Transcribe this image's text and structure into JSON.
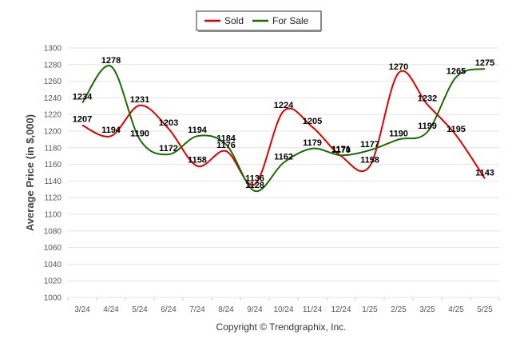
{
  "chart_data": {
    "type": "line",
    "categories": [
      "3/24",
      "4/24",
      "5/24",
      "6/24",
      "7/24",
      "8/24",
      "9/24",
      "10/24",
      "11/24",
      "12/24",
      "1/25",
      "2/25",
      "3/25",
      "4/25",
      "5/25"
    ],
    "series": [
      {
        "name": "Sold",
        "color": "#e00000",
        "values": [
          1207,
          1194,
          1231,
          1203,
          1158,
          1176,
          1136,
          1224,
          1205,
          1170,
          1158,
          1270,
          1232,
          1195,
          1143
        ]
      },
      {
        "name": "For Sale",
        "color": "#1a6b00",
        "values": [
          1234,
          1278,
          1190,
          1172,
          1194,
          1184,
          1128,
          1162,
          1179,
          1171,
          1177,
          1190,
          1199,
          1265,
          1275
        ]
      }
    ],
    "ylabel": "Average Price (in $,000)",
    "xlabel": "",
    "ylim": [
      1000,
      1300
    ],
    "yticks": [
      1000,
      1020,
      1040,
      1060,
      1080,
      1100,
      1120,
      1140,
      1160,
      1180,
      1200,
      1220,
      1240,
      1260,
      1280,
      1300
    ],
    "grid": true,
    "legend_position": "top-center",
    "footer": "Copyright © Trendgraphix, Inc."
  }
}
